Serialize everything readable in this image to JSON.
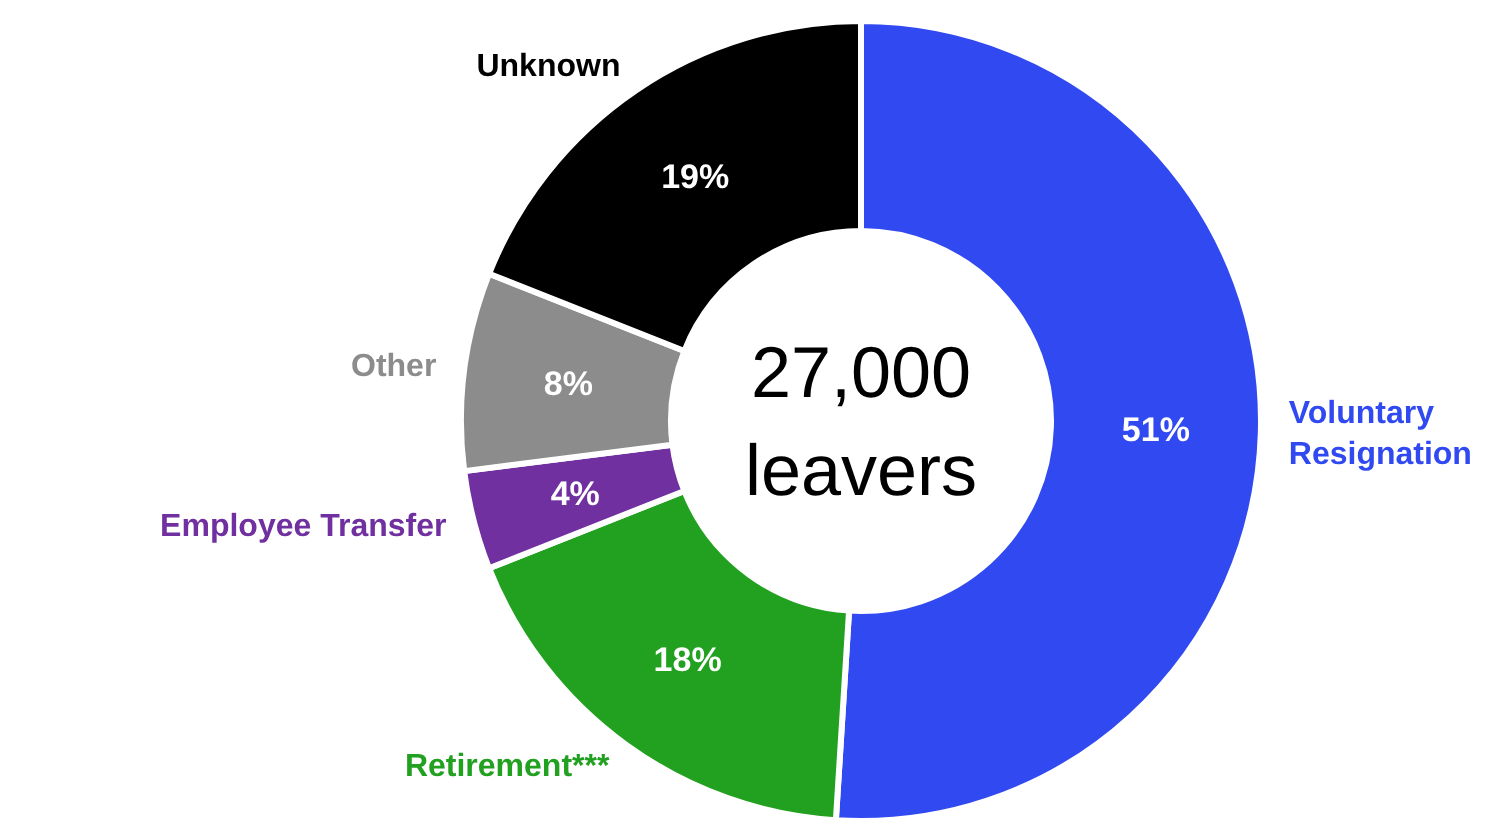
{
  "chart_data": {
    "type": "donut",
    "categories": [
      "Voluntary\nResignation",
      "Retirement***",
      "Employee Transfer",
      "Other",
      "Unknown"
    ],
    "values": [
      51,
      18,
      4,
      8,
      19
    ],
    "colors": [
      "#3049f0",
      "#22a020",
      "#7030a0",
      "#8c8c8c",
      "#000000"
    ],
    "value_labels": [
      "51%",
      "18%",
      "4%",
      "8%",
      "19%"
    ],
    "annotations": [
      "27,000\nleavers"
    ]
  }
}
